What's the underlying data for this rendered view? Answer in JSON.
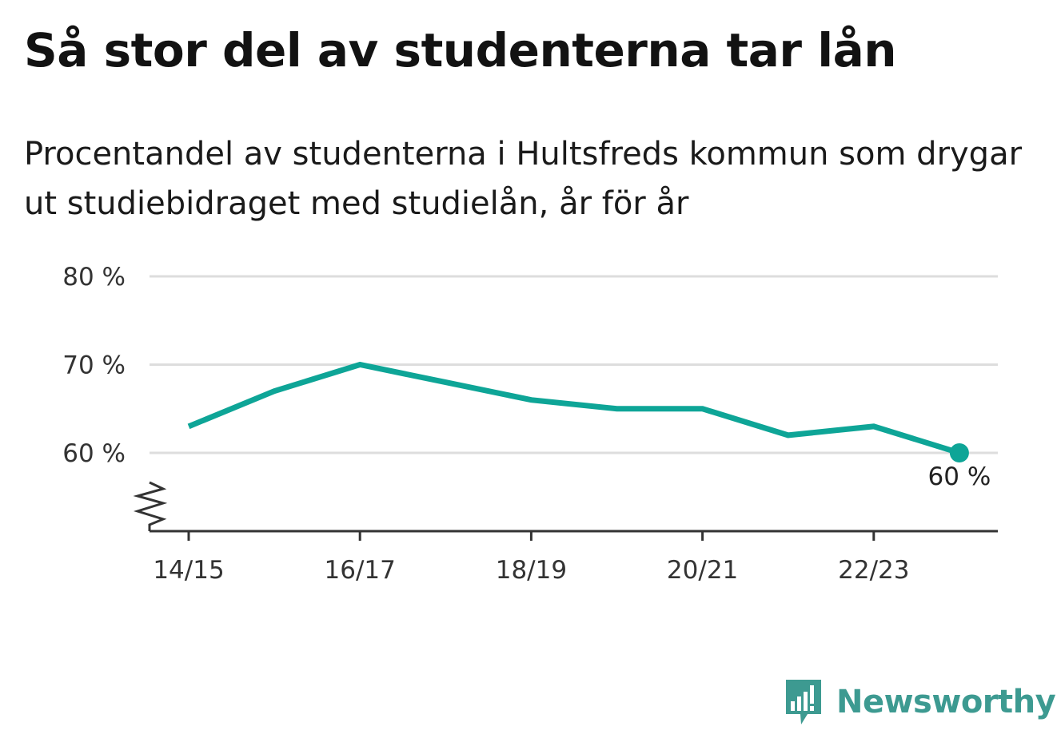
{
  "header": {
    "title": "Så stor del av studenterna tar lån",
    "subtitle": "Procentandel av studenterna i Hultsfreds kommun som drygar ut studiebidraget med studielån, år för år"
  },
  "chart_data": {
    "type": "line",
    "title": "Så stor del av studenterna tar lån",
    "subtitle": "Procentandel av studenterna i Hultsfreds kommun som drygar ut studiebidraget med studielån, år för år",
    "x": [
      "14/15",
      "15/16",
      "16/17",
      "17/18",
      "18/19",
      "19/20",
      "20/21",
      "21/22",
      "22/23",
      "23/24"
    ],
    "x_tick_labels": [
      "14/15",
      "16/17",
      "18/19",
      "20/21",
      "22/23"
    ],
    "series": [
      {
        "values": [
          63,
          67,
          70,
          68,
          66,
          65,
          65,
          62,
          63,
          60
        ],
        "color": "#0ea597"
      }
    ],
    "y_ticks": [
      60,
      70,
      80
    ],
    "y_tick_labels": [
      "60 %",
      "70 %",
      "80 %"
    ],
    "ylim": [
      51,
      80
    ],
    "axis_break": true,
    "grid": true,
    "end_label": "60 %",
    "colors": {
      "line": "#0ea597",
      "grid": "#dddddd",
      "axis": "#333333"
    }
  },
  "branding": {
    "logo_text": "Newsworthy",
    "logo_icon": "bar-chart-bubble-icon",
    "color": "#3d9a91"
  }
}
